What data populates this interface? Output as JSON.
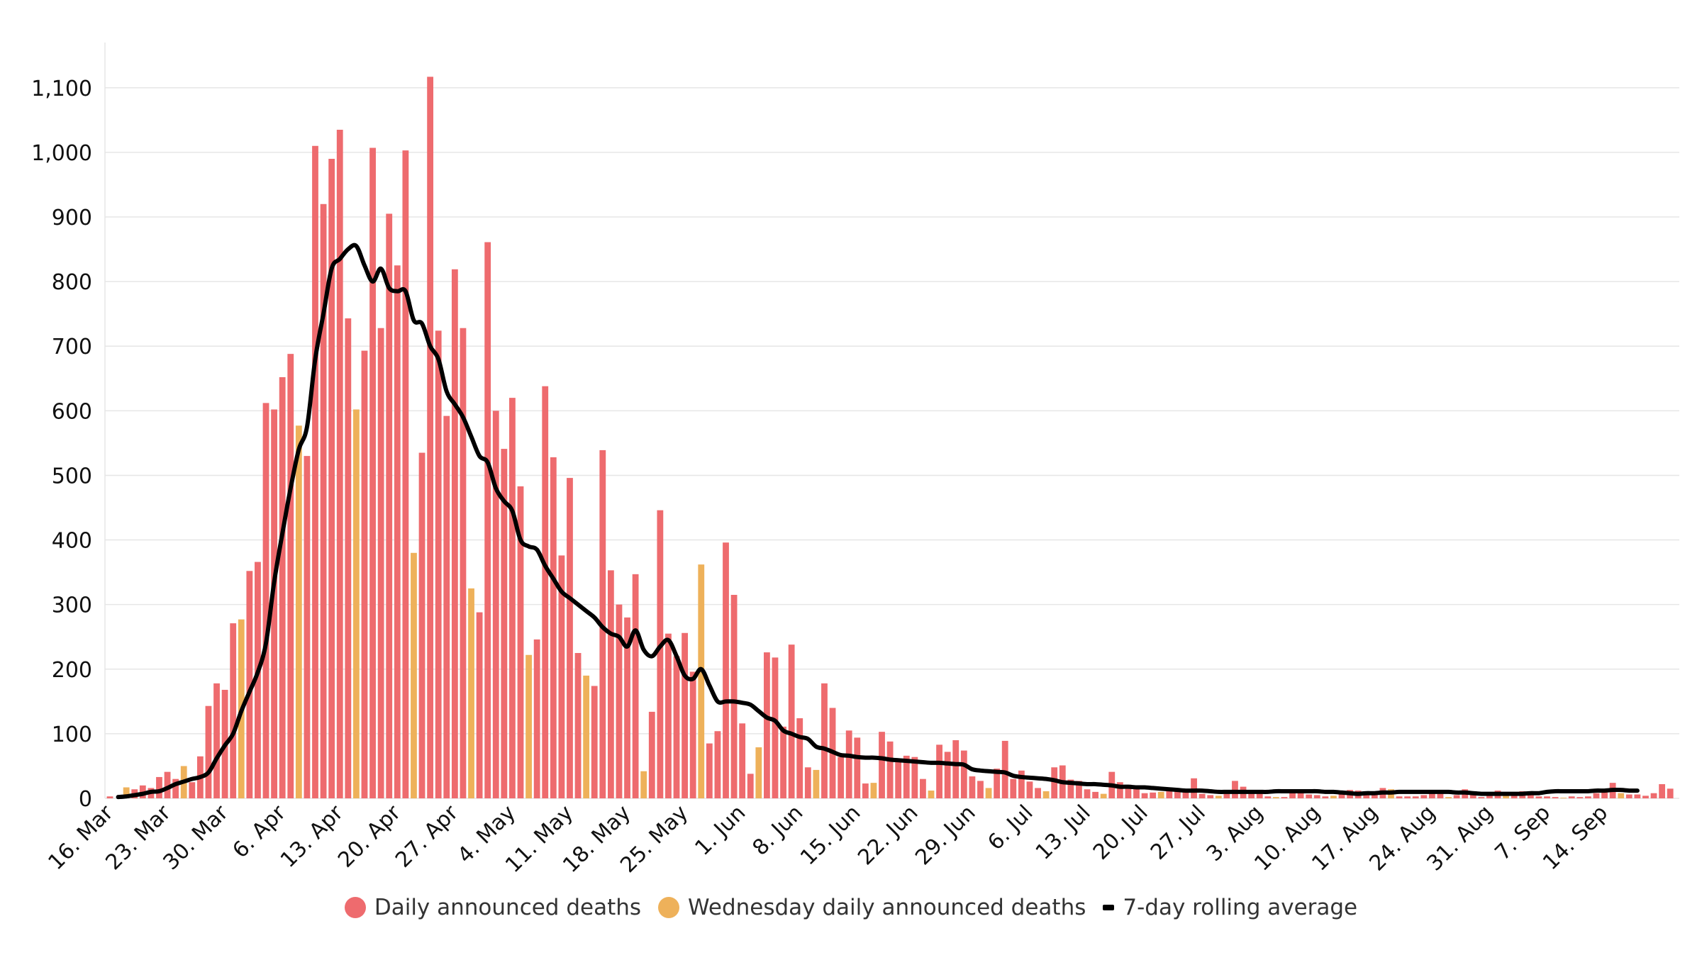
{
  "colors": {
    "daily": "#ee6b6e",
    "wednesday": "#eeb15a",
    "rolling": "#000000",
    "grid": "#e6e6e6",
    "axis": "#cccccc"
  },
  "chart_data": {
    "type": "bar",
    "title": "",
    "xlabel": "",
    "ylabel": "",
    "ylim": [
      0,
      1170
    ],
    "yticks": [
      0,
      100,
      200,
      300,
      400,
      500,
      600,
      700,
      800,
      900,
      1000,
      1100
    ],
    "ytick_labels": [
      "0",
      "100",
      "200",
      "300",
      "400",
      "500",
      "600",
      "700",
      "800",
      "900",
      "1,000",
      "1,100"
    ],
    "x_start_date": "2020-03-16",
    "xtick_labels": [
      "16. Mar",
      "23. Mar",
      "30. Mar",
      "6. Apr",
      "13. Apr",
      "20. Apr",
      "27. Apr",
      "4. May",
      "11. May",
      "18. May",
      "25. May",
      "1. Jun",
      "8. Jun",
      "15. Jun",
      "22. Jun",
      "29. Jun",
      "6. Jul",
      "13. Jul",
      "20. Jul",
      "27. Jul",
      "3. Aug",
      "10. Aug",
      "17. Aug",
      "24. Aug",
      "31. Aug",
      "7. Sep",
      "14. Sep"
    ],
    "grid": true,
    "legend_position": "bottom-center",
    "legend": [
      {
        "label": "Daily announced deaths",
        "icon": "circle",
        "color": "#ee6b6e"
      },
      {
        "label": "Wednesday daily announced deaths",
        "icon": "circle",
        "color": "#eeb15a"
      },
      {
        "label": "7-day rolling average",
        "icon": "dash",
        "color": "#000000"
      }
    ],
    "series": [
      {
        "name": "Daily announced deaths",
        "kind": "bar",
        "wednesday_highlight": true,
        "values": [
          3,
          0,
          17,
          14,
          20,
          16,
          33,
          41,
          30,
          50,
          25,
          65,
          143,
          178,
          168,
          271,
          277,
          352,
          366,
          612,
          602,
          652,
          688,
          577,
          530,
          1010,
          920,
          990,
          1035,
          743,
          602,
          693,
          1007,
          728,
          905,
          825,
          1003,
          380,
          535,
          1117,
          724,
          592,
          819,
          728,
          325,
          288,
          861,
          600,
          541,
          620,
          483,
          222,
          246,
          638,
          528,
          376,
          496,
          225,
          190,
          174,
          539,
          353,
          300,
          280,
          347,
          42,
          134,
          446,
          255,
          220,
          256,
          196,
          362,
          85,
          104,
          396,
          315,
          116,
          38,
          79,
          226,
          218,
          111,
          238,
          124,
          48,
          44,
          178,
          140,
          64,
          105,
          94,
          23,
          24,
          103,
          88,
          59,
          66,
          64,
          30,
          12,
          83,
          72,
          90,
          74,
          34,
          27,
          16,
          46,
          89,
          30,
          43,
          26,
          16,
          11,
          48,
          51,
          29,
          27,
          14,
          10,
          7,
          41,
          25,
          21,
          17,
          8,
          9,
          10,
          14,
          14,
          10,
          31,
          7,
          5,
          4,
          10,
          27,
          18,
          11,
          10,
          3,
          2,
          2,
          10,
          10,
          6,
          5,
          3,
          4,
          8,
          13,
          12,
          11,
          10,
          16,
          14,
          3,
          3,
          3,
          5,
          9,
          7,
          2,
          5,
          14,
          10,
          2,
          6,
          12,
          4,
          6,
          11,
          10,
          3,
          3,
          2,
          1,
          3,
          2,
          3,
          8,
          10,
          24,
          8,
          6,
          6,
          4,
          8,
          22,
          15
        ]
      },
      {
        "name": "7-day rolling average",
        "kind": "line",
        "values": [
          2,
          3,
          5,
          7,
          10,
          11,
          16,
          22,
          26,
          30,
          33,
          40,
          62,
          82,
          100,
          135,
          165,
          195,
          240,
          335,
          410,
          480,
          540,
          575,
          680,
          750,
          820,
          835,
          850,
          855,
          825,
          800,
          820,
          790,
          785,
          785,
          740,
          735,
          700,
          680,
          630,
          610,
          590,
          560,
          530,
          520,
          480,
          460,
          445,
          400,
          390,
          385,
          360,
          340,
          320,
          310,
          300,
          290,
          280,
          265,
          255,
          250,
          235,
          260,
          230,
          220,
          235,
          245,
          220,
          190,
          185,
          200,
          175,
          150,
          150,
          150,
          148,
          145,
          135,
          125,
          120,
          105,
          100,
          95,
          92,
          80,
          77,
          72,
          67,
          66,
          64,
          63,
          63,
          62,
          60,
          59,
          58,
          57,
          56,
          55,
          55,
          54,
          53,
          52,
          45,
          43,
          42,
          41,
          40,
          35,
          33,
          32,
          31,
          30,
          28,
          25,
          24,
          23,
          22,
          22,
          21,
          20,
          18,
          18,
          17,
          17,
          16,
          15,
          14,
          13,
          12,
          12,
          12,
          11,
          10,
          10,
          10,
          10,
          10,
          10,
          10,
          11,
          11,
          11,
          11,
          11,
          11,
          10,
          10,
          9,
          8,
          7,
          8,
          8,
          9,
          9,
          10,
          10,
          10,
          10,
          10,
          10,
          10,
          9,
          9,
          8,
          7,
          7,
          7,
          7,
          7,
          7,
          8,
          8,
          10,
          11,
          11,
          11,
          11,
          11,
          12,
          12,
          13,
          13,
          12,
          12
        ]
      }
    ]
  }
}
